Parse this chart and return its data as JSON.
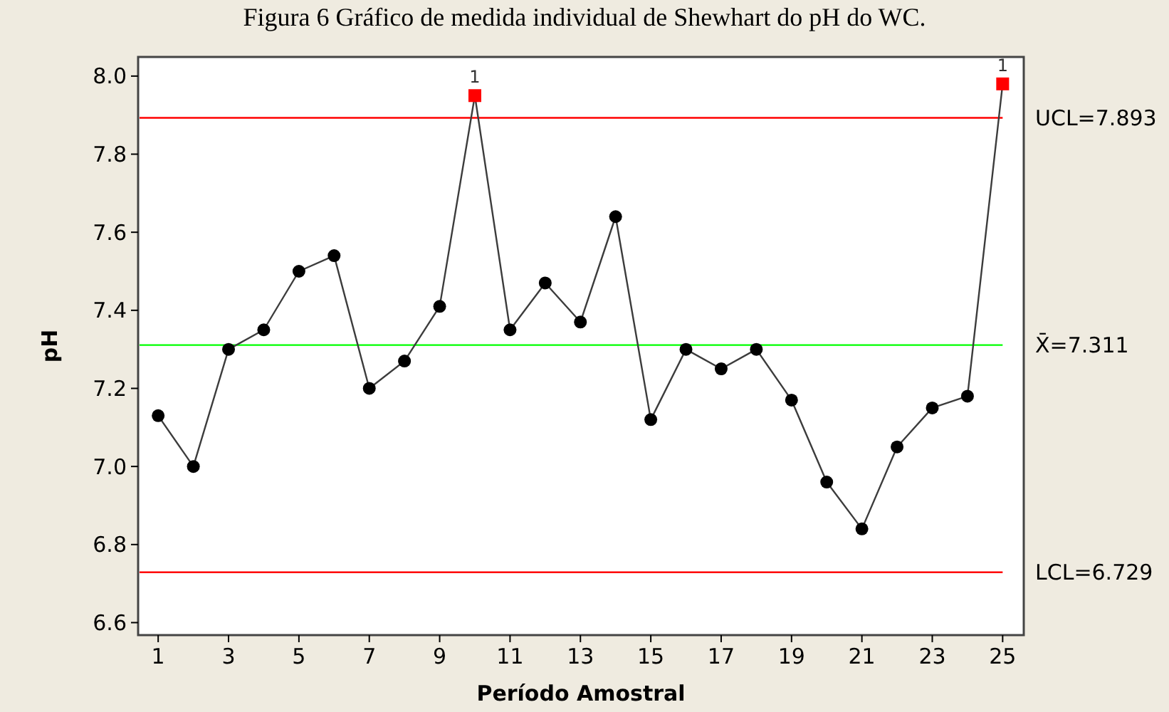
{
  "chart_data": {
    "type": "line",
    "title": "Figura 6 Gráfico de medida individual de Shewhart do pH do WC.",
    "xlabel": "Período Amostral",
    "ylabel": "pH",
    "x": [
      1,
      2,
      3,
      4,
      5,
      6,
      7,
      8,
      9,
      10,
      11,
      12,
      13,
      14,
      15,
      16,
      17,
      18,
      19,
      20,
      21,
      22,
      23,
      24,
      25
    ],
    "series": [
      {
        "color": "#3c3c3c",
        "marker": "none",
        "values": [
          7.13,
          7.0,
          7.3,
          7.35,
          7.5,
          7.54,
          7.2,
          7.27,
          7.41,
          7.95,
          7.35,
          7.47,
          7.37,
          7.64,
          7.12,
          7.3,
          7.25,
          7.3,
          7.17,
          6.96,
          6.84,
          7.05,
          7.15,
          7.18,
          7.98
        ]
      },
      {
        "type": "scatter",
        "color": "#000000",
        "marker": "circle",
        "values": [
          7.13,
          7.0,
          7.3,
          7.35,
          7.5,
          7.54,
          7.2,
          7.27,
          7.41,
          null,
          7.35,
          7.47,
          7.37,
          7.64,
          7.12,
          7.3,
          7.25,
          7.3,
          7.17,
          6.96,
          6.84,
          7.05,
          7.15,
          7.18,
          null
        ]
      },
      {
        "type": "scatter",
        "color": "#ff0000",
        "marker": "square",
        "values": [
          null,
          null,
          null,
          null,
          null,
          null,
          null,
          null,
          null,
          7.95,
          null,
          null,
          null,
          null,
          null,
          null,
          null,
          null,
          null,
          null,
          null,
          null,
          null,
          null,
          7.98
        ]
      }
    ],
    "annotations": [
      {
        "text": "1",
        "x": 10,
        "y": 7.95
      },
      {
        "text": "1",
        "x": 25,
        "y": 7.98
      }
    ],
    "ref_lines": [
      {
        "axis": "y",
        "value": 7.893,
        "label": "UCL=7.893",
        "color": "#ff0000"
      },
      {
        "axis": "y",
        "value": 7.311,
        "label": "X̄=7.311",
        "color": "#00ff00"
      },
      {
        "axis": "y",
        "value": 6.729,
        "label": "LCL=6.729",
        "color": "#ff0000"
      }
    ],
    "xlim": [
      0.43,
      25.6
    ],
    "xticks": [
      1,
      3,
      5,
      7,
      9,
      11,
      13,
      15,
      17,
      19,
      21,
      23,
      25
    ],
    "ylim": [
      6.568,
      8.049
    ],
    "yticks": [
      {
        "value": 6.6,
        "label": "6.6"
      },
      {
        "value": 6.8,
        "label": "6.8"
      },
      {
        "value": 7.0,
        "label": "7.0"
      },
      {
        "value": 7.2,
        "label": "7.2"
      },
      {
        "value": 7.4,
        "label": "7.4"
      },
      {
        "value": 7.6,
        "label": "7.6"
      },
      {
        "value": 7.8,
        "label": "7.8"
      },
      {
        "value": 8.0,
        "label": "8.0"
      }
    ],
    "grid": false
  }
}
